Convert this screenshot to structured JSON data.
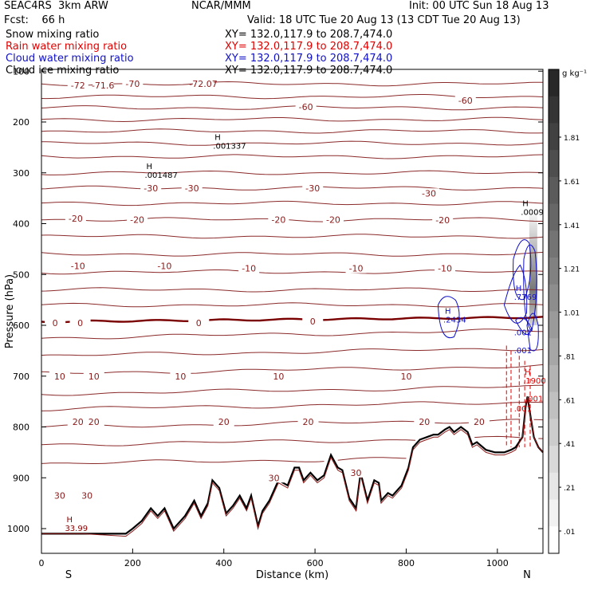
{
  "header": {
    "model_left": "SEAC4RS",
    "model_res": "3km ARW",
    "org": "NCAR/MMM",
    "init": "Init: 00 UTC Sun 18 Aug 13",
    "fcst_label": "Fcst:",
    "fcst_value": "66 h",
    "valid": "Valid: 18 UTC Tue 20 Aug 13 (13 CDT Tue 20 Aug 13)"
  },
  "fields": [
    {
      "name": "Snow mixing ratio",
      "xy": "XY= 132.0,117.9 to 208.7,474.0",
      "color": "#000000"
    },
    {
      "name": "Rain water mixing ratio",
      "xy": "XY= 132.0,117.9 to 208.7,474.0",
      "color": "#e00000"
    },
    {
      "name": "Cloud water mixing ratio",
      "xy": "XY= 132.0,117.9 to 208.7,474.0",
      "color": "#1010c8"
    },
    {
      "name": "Cloud ice mixing ratio",
      "xy": "XY= 132.0,117.9 to 208.7,474.0",
      "color": "#000000"
    }
  ],
  "chart_data": {
    "type": "contour cross-section",
    "xlabel": "Distance (km)",
    "ylabel": "Pressure (hPa)",
    "xlim": [
      0,
      1100
    ],
    "ylim": [
      1050,
      100
    ],
    "x_ticks": [
      0,
      200,
      400,
      600,
      800,
      1000
    ],
    "y_ticks": [
      100,
      200,
      300,
      400,
      500,
      600,
      700,
      800,
      900,
      1000
    ],
    "y_tick_labels": [
      "100",
      "200",
      "300",
      "400",
      "500",
      "600",
      "700",
      "800",
      "900",
      "1000"
    ],
    "x_endpoints": {
      "left": "S",
      "right": "N"
    },
    "colorbar": {
      "unit": "g kg⁻¹",
      "labels": [
        "1.81",
        "1.61",
        "1.41",
        "1.21",
        "1.01",
        ".81",
        ".61",
        ".41",
        ".21",
        ".01"
      ]
    },
    "isotherm_labels": [
      {
        "text": "-72",
        "x": 80,
        "p": 128
      },
      {
        "text": "-71.6",
        "x": 135,
        "p": 128
      },
      {
        "text": "-70",
        "x": 200,
        "p": 125
      },
      {
        "text": "-72.07",
        "x": 355,
        "p": 125
      },
      {
        "text": "-60",
        "x": 580,
        "p": 170
      },
      {
        "text": "-60",
        "x": 930,
        "p": 158
      },
      {
        "text": "-30",
        "x": 240,
        "p": 330
      },
      {
        "text": "-30",
        "x": 330,
        "p": 330
      },
      {
        "text": "-30",
        "x": 595,
        "p": 330
      },
      {
        "text": "-30",
        "x": 850,
        "p": 340
      },
      {
        "text": "-20",
        "x": 75,
        "p": 390
      },
      {
        "text": "-20",
        "x": 210,
        "p": 392
      },
      {
        "text": "-20",
        "x": 520,
        "p": 392
      },
      {
        "text": "-20",
        "x": 640,
        "p": 392
      },
      {
        "text": "-20",
        "x": 880,
        "p": 393
      },
      {
        "text": "-10",
        "x": 80,
        "p": 483
      },
      {
        "text": "-10",
        "x": 270,
        "p": 483
      },
      {
        "text": "-10",
        "x": 455,
        "p": 488
      },
      {
        "text": "-10",
        "x": 690,
        "p": 488
      },
      {
        "text": "-10",
        "x": 885,
        "p": 488
      },
      {
        "text": "0",
        "x": 30,
        "p": 595
      },
      {
        "text": "0",
        "x": 85,
        "p": 595
      },
      {
        "text": "0",
        "x": 345,
        "p": 595
      },
      {
        "text": "0",
        "x": 595,
        "p": 592
      },
      {
        "text": "10",
        "x": 40,
        "p": 700
      },
      {
        "text": "10",
        "x": 115,
        "p": 700
      },
      {
        "text": "10",
        "x": 305,
        "p": 700
      },
      {
        "text": "10",
        "x": 520,
        "p": 700
      },
      {
        "text": "10",
        "x": 800,
        "p": 700
      },
      {
        "text": "20",
        "x": 80,
        "p": 790
      },
      {
        "text": "20",
        "x": 115,
        "p": 790
      },
      {
        "text": "20",
        "x": 400,
        "p": 790
      },
      {
        "text": "20",
        "x": 585,
        "p": 790
      },
      {
        "text": "20",
        "x": 840,
        "p": 790
      },
      {
        "text": "20",
        "x": 960,
        "p": 790
      },
      {
        "text": "30",
        "x": 40,
        "p": 935
      },
      {
        "text": "30",
        "x": 100,
        "p": 935
      },
      {
        "text": "30",
        "x": 510,
        "p": 900
      },
      {
        "text": "30",
        "x": 690,
        "p": 890
      }
    ],
    "maxima": [
      {
        "text": "H",
        "value": "33.99",
        "x": 55,
        "p": 1000,
        "color": "#8b0000"
      },
      {
        "text": "H",
        "value": ".001337",
        "x": 380,
        "p": 248,
        "color": "#000000"
      },
      {
        "text": "H",
        "value": ".001487",
        "x": 230,
        "p": 305,
        "color": "#000000"
      },
      {
        "text": "H",
        "value": ".0009",
        "x": 1055,
        "p": 378,
        "color": "#000000"
      },
      {
        "text": "H",
        "value": ".7769",
        "x": 1040,
        "p": 545,
        "color": "#1010c8"
      },
      {
        "text": "H",
        "value": ".2434",
        "x": 885,
        "p": 590,
        "color": "#1010c8"
      },
      {
        "text": "",
        "value": ".001",
        "x": 1040,
        "p": 615,
        "color": "#1010c8"
      },
      {
        "text": "",
        "value": ".001",
        "x": 1040,
        "p": 650,
        "color": "#1010c8"
      },
      {
        "text": "H",
        "value": ".1900",
        "x": 1060,
        "p": 710,
        "color": "#e00000"
      },
      {
        "text": "",
        "value": ".001",
        "x": 1040,
        "p": 765,
        "color": "#e00000"
      },
      {
        "text": "",
        "value": ".001",
        "x": 1065,
        "p": 745,
        "color": "#e00000"
      }
    ]
  }
}
